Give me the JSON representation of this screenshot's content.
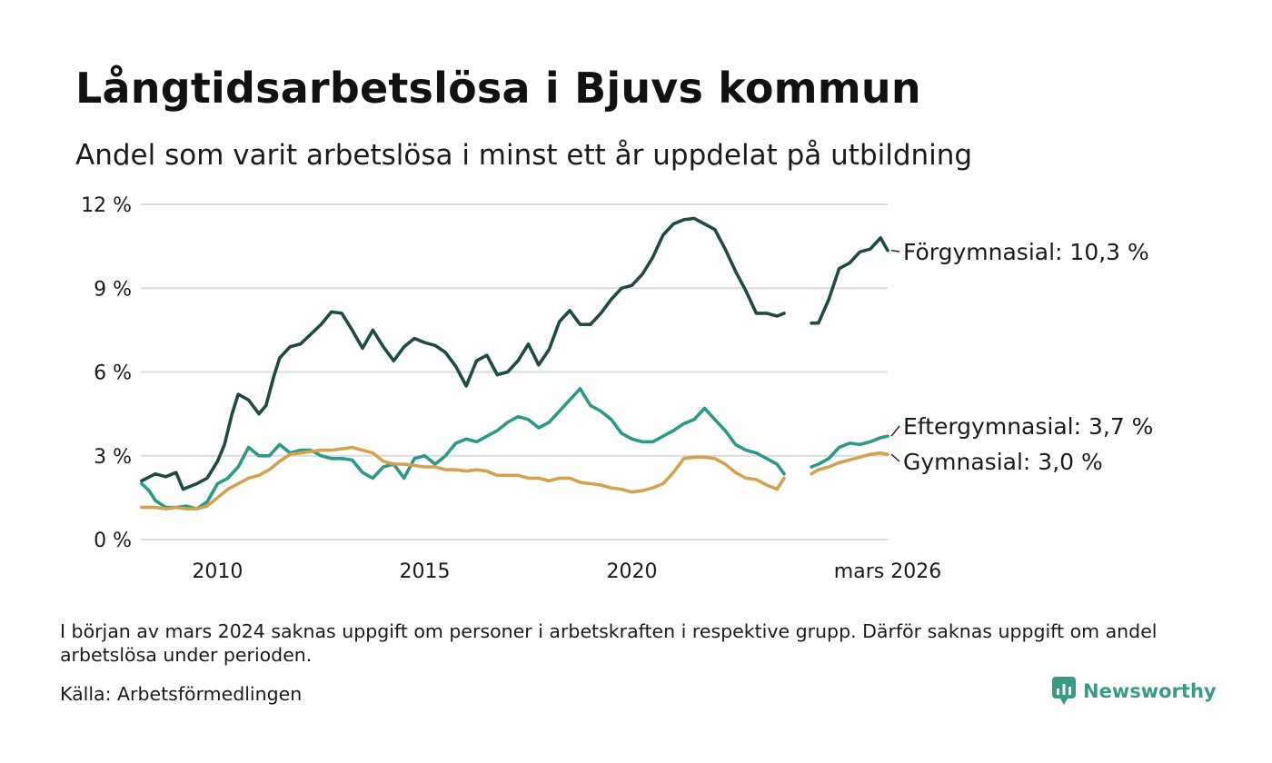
{
  "chart_data": {
    "type": "line",
    "title": "Långtidsarbetslösa i Bjuvs kommun",
    "subtitle": "Andel som varit arbetslösa i minst ett år uppdelat på utbildning",
    "x_range": [
      2008.15,
      2026.17
    ],
    "ylim": [
      0,
      12
    ],
    "yticks": [
      0,
      3,
      6,
      9,
      12
    ],
    "ytick_labels": [
      "0 %",
      "3 %",
      "6 %",
      "9 %",
      "12 %"
    ],
    "xticks": [
      2010,
      2015,
      2020,
      2026.17
    ],
    "xtick_labels": [
      "2010",
      "2015",
      "2020",
      "mars 2026"
    ],
    "grid": true,
    "gap": {
      "start": 2023.67,
      "end": 2024.33
    },
    "series": [
      {
        "name": "Förgymnasial",
        "label": "Förgymnasial: 10,3 %",
        "color": "#1f4a44",
        "points": [
          [
            2008.17,
            2.1
          ],
          [
            2008.5,
            2.35
          ],
          [
            2008.75,
            2.25
          ],
          [
            2009.0,
            2.4
          ],
          [
            2009.17,
            1.8
          ],
          [
            2009.5,
            2.0
          ],
          [
            2009.75,
            2.2
          ],
          [
            2010.0,
            2.8
          ],
          [
            2010.17,
            3.4
          ],
          [
            2010.35,
            4.5
          ],
          [
            2010.5,
            5.2
          ],
          [
            2010.75,
            5.0
          ],
          [
            2011.0,
            4.5
          ],
          [
            2011.17,
            4.8
          ],
          [
            2011.35,
            5.8
          ],
          [
            2011.5,
            6.5
          ],
          [
            2011.75,
            6.9
          ],
          [
            2012.0,
            7.0
          ],
          [
            2012.25,
            7.35
          ],
          [
            2012.5,
            7.7
          ],
          [
            2012.75,
            8.15
          ],
          [
            2013.0,
            8.1
          ],
          [
            2013.25,
            7.5
          ],
          [
            2013.5,
            6.85
          ],
          [
            2013.75,
            7.5
          ],
          [
            2014.0,
            6.9
          ],
          [
            2014.25,
            6.4
          ],
          [
            2014.5,
            6.9
          ],
          [
            2014.75,
            7.2
          ],
          [
            2015.0,
            7.05
          ],
          [
            2015.25,
            6.95
          ],
          [
            2015.5,
            6.7
          ],
          [
            2015.75,
            6.2
          ],
          [
            2016.0,
            5.5
          ],
          [
            2016.25,
            6.4
          ],
          [
            2016.5,
            6.6
          ],
          [
            2016.75,
            5.9
          ],
          [
            2017.0,
            6.0
          ],
          [
            2017.25,
            6.4
          ],
          [
            2017.5,
            7.0
          ],
          [
            2017.75,
            6.25
          ],
          [
            2018.0,
            6.8
          ],
          [
            2018.25,
            7.8
          ],
          [
            2018.5,
            8.2
          ],
          [
            2018.75,
            7.7
          ],
          [
            2019.0,
            7.7
          ],
          [
            2019.25,
            8.1
          ],
          [
            2019.5,
            8.6
          ],
          [
            2019.75,
            9.0
          ],
          [
            2020.0,
            9.1
          ],
          [
            2020.25,
            9.5
          ],
          [
            2020.5,
            10.1
          ],
          [
            2020.75,
            10.9
          ],
          [
            2021.0,
            11.3
          ],
          [
            2021.25,
            11.45
          ],
          [
            2021.5,
            11.5
          ],
          [
            2021.75,
            11.3
          ],
          [
            2022.0,
            11.1
          ],
          [
            2022.25,
            10.4
          ],
          [
            2022.5,
            9.6
          ],
          [
            2022.75,
            8.9
          ],
          [
            2023.0,
            8.1
          ],
          [
            2023.25,
            8.1
          ],
          [
            2023.5,
            8.0
          ],
          [
            2023.67,
            8.1
          ],
          [
            2024.33,
            7.75
          ],
          [
            2024.5,
            7.75
          ],
          [
            2024.75,
            8.6
          ],
          [
            2025.0,
            9.7
          ],
          [
            2025.25,
            9.9
          ],
          [
            2025.5,
            10.3
          ],
          [
            2025.75,
            10.4
          ],
          [
            2026.0,
            10.8
          ],
          [
            2026.17,
            10.35
          ]
        ]
      },
      {
        "name": "Eftergymnasial",
        "label": "Eftergymnasial:  3,7 %",
        "color": "#2a9a86",
        "points": [
          [
            2008.17,
            2.0
          ],
          [
            2008.35,
            1.75
          ],
          [
            2008.5,
            1.4
          ],
          [
            2008.75,
            1.15
          ],
          [
            2009.0,
            1.15
          ],
          [
            2009.25,
            1.2
          ],
          [
            2009.5,
            1.1
          ],
          [
            2009.75,
            1.35
          ],
          [
            2010.0,
            2.0
          ],
          [
            2010.25,
            2.2
          ],
          [
            2010.5,
            2.6
          ],
          [
            2010.75,
            3.3
          ],
          [
            2011.0,
            3.0
          ],
          [
            2011.25,
            3.0
          ],
          [
            2011.5,
            3.4
          ],
          [
            2011.75,
            3.1
          ],
          [
            2012.0,
            3.2
          ],
          [
            2012.25,
            3.2
          ],
          [
            2012.5,
            3.0
          ],
          [
            2012.75,
            2.9
          ],
          [
            2013.0,
            2.9
          ],
          [
            2013.25,
            2.85
          ],
          [
            2013.5,
            2.4
          ],
          [
            2013.75,
            2.2
          ],
          [
            2014.0,
            2.6
          ],
          [
            2014.25,
            2.7
          ],
          [
            2014.5,
            2.2
          ],
          [
            2014.75,
            2.9
          ],
          [
            2015.0,
            3.0
          ],
          [
            2015.25,
            2.7
          ],
          [
            2015.5,
            3.0
          ],
          [
            2015.75,
            3.45
          ],
          [
            2016.0,
            3.6
          ],
          [
            2016.25,
            3.5
          ],
          [
            2016.5,
            3.7
          ],
          [
            2016.75,
            3.9
          ],
          [
            2017.0,
            4.2
          ],
          [
            2017.25,
            4.4
          ],
          [
            2017.5,
            4.3
          ],
          [
            2017.75,
            4.0
          ],
          [
            2018.0,
            4.2
          ],
          [
            2018.25,
            4.6
          ],
          [
            2018.5,
            5.0
          ],
          [
            2018.75,
            5.4
          ],
          [
            2019.0,
            4.8
          ],
          [
            2019.25,
            4.6
          ],
          [
            2019.5,
            4.3
          ],
          [
            2019.75,
            3.8
          ],
          [
            2020.0,
            3.6
          ],
          [
            2020.25,
            3.5
          ],
          [
            2020.5,
            3.5
          ],
          [
            2020.75,
            3.7
          ],
          [
            2021.0,
            3.9
          ],
          [
            2021.25,
            4.15
          ],
          [
            2021.5,
            4.3
          ],
          [
            2021.75,
            4.7
          ],
          [
            2022.0,
            4.3
          ],
          [
            2022.25,
            3.9
          ],
          [
            2022.5,
            3.4
          ],
          [
            2022.75,
            3.2
          ],
          [
            2023.0,
            3.1
          ],
          [
            2023.25,
            2.9
          ],
          [
            2023.5,
            2.7
          ],
          [
            2023.67,
            2.35
          ],
          [
            2024.33,
            2.6
          ],
          [
            2024.5,
            2.7
          ],
          [
            2024.75,
            2.9
          ],
          [
            2025.0,
            3.3
          ],
          [
            2025.25,
            3.45
          ],
          [
            2025.5,
            3.4
          ],
          [
            2025.75,
            3.5
          ],
          [
            2026.0,
            3.65
          ],
          [
            2026.17,
            3.7
          ]
        ]
      },
      {
        "name": "Gymnasial",
        "label": "Gymnasial:  3,0 %",
        "color": "#d4a24e",
        "points": [
          [
            2008.17,
            1.15
          ],
          [
            2008.5,
            1.15
          ],
          [
            2008.75,
            1.1
          ],
          [
            2009.0,
            1.15
          ],
          [
            2009.25,
            1.1
          ],
          [
            2009.5,
            1.1
          ],
          [
            2009.75,
            1.2
          ],
          [
            2010.0,
            1.5
          ],
          [
            2010.25,
            1.8
          ],
          [
            2010.5,
            2.0
          ],
          [
            2010.75,
            2.2
          ],
          [
            2011.0,
            2.3
          ],
          [
            2011.25,
            2.5
          ],
          [
            2011.5,
            2.8
          ],
          [
            2011.75,
            3.05
          ],
          [
            2012.0,
            3.1
          ],
          [
            2012.25,
            3.15
          ],
          [
            2012.5,
            3.2
          ],
          [
            2012.75,
            3.2
          ],
          [
            2013.0,
            3.25
          ],
          [
            2013.25,
            3.3
          ],
          [
            2013.5,
            3.2
          ],
          [
            2013.75,
            3.1
          ],
          [
            2014.0,
            2.8
          ],
          [
            2014.25,
            2.7
          ],
          [
            2014.5,
            2.7
          ],
          [
            2014.75,
            2.65
          ],
          [
            2015.0,
            2.6
          ],
          [
            2015.25,
            2.6
          ],
          [
            2015.5,
            2.5
          ],
          [
            2015.75,
            2.5
          ],
          [
            2016.0,
            2.45
          ],
          [
            2016.25,
            2.5
          ],
          [
            2016.5,
            2.45
          ],
          [
            2016.75,
            2.3
          ],
          [
            2017.0,
            2.3
          ],
          [
            2017.25,
            2.3
          ],
          [
            2017.5,
            2.2
          ],
          [
            2017.75,
            2.2
          ],
          [
            2018.0,
            2.1
          ],
          [
            2018.25,
            2.2
          ],
          [
            2018.5,
            2.2
          ],
          [
            2018.75,
            2.05
          ],
          [
            2019.0,
            2.0
          ],
          [
            2019.25,
            1.95
          ],
          [
            2019.5,
            1.85
          ],
          [
            2019.75,
            1.8
          ],
          [
            2020.0,
            1.7
          ],
          [
            2020.25,
            1.75
          ],
          [
            2020.5,
            1.85
          ],
          [
            2020.75,
            2.0
          ],
          [
            2021.0,
            2.4
          ],
          [
            2021.25,
            2.9
          ],
          [
            2021.5,
            2.95
          ],
          [
            2021.75,
            2.95
          ],
          [
            2022.0,
            2.9
          ],
          [
            2022.25,
            2.7
          ],
          [
            2022.5,
            2.4
          ],
          [
            2022.75,
            2.2
          ],
          [
            2023.0,
            2.15
          ],
          [
            2023.25,
            1.95
          ],
          [
            2023.5,
            1.8
          ],
          [
            2023.67,
            2.2
          ],
          [
            2024.33,
            2.35
          ],
          [
            2024.5,
            2.5
          ],
          [
            2024.75,
            2.6
          ],
          [
            2025.0,
            2.75
          ],
          [
            2025.25,
            2.85
          ],
          [
            2025.5,
            2.95
          ],
          [
            2025.75,
            3.05
          ],
          [
            2026.0,
            3.1
          ],
          [
            2026.17,
            3.05
          ]
        ]
      }
    ]
  },
  "footnote": "I början av mars 2024 saknas uppgift om personer i arbetskraften i respektive grupp. Därför saknas uppgift om andel arbetslösa under perioden.",
  "source": "Källa: Arbetsförmedlingen",
  "brand": {
    "name": "Newsworthy",
    "icon": "newsworthy-logo-icon",
    "color": "#3a9a86"
  }
}
